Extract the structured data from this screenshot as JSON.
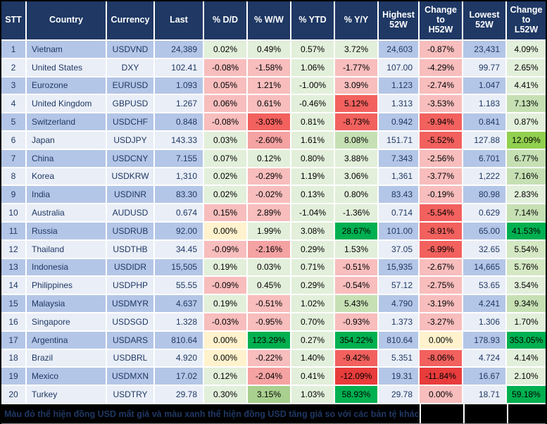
{
  "chart_data": {
    "type": "table",
    "columns": [
      {
        "key": "stt",
        "label": "STT"
      },
      {
        "key": "country",
        "label": "Country"
      },
      {
        "key": "currency",
        "label": "Currency"
      },
      {
        "key": "last",
        "label": "Last"
      },
      {
        "key": "dd",
        "label": "% D/D"
      },
      {
        "key": "ww",
        "label": "% W/W"
      },
      {
        "key": "ytd",
        "label": "% YTD"
      },
      {
        "key": "yy",
        "label": "% Y/Y"
      },
      {
        "key": "high",
        "label": "Highest\n52W"
      },
      {
        "key": "chg_h",
        "label": "Change\nto\nH52W"
      },
      {
        "key": "low",
        "label": "Lowest\n52W"
      },
      {
        "key": "chg_l",
        "label": "Change\nto\nL52W"
      }
    ],
    "rows": [
      {
        "stt": "1",
        "country": "Vietnam",
        "currency": "USDVND",
        "last": "24,389",
        "high": "24,603",
        "low": "23,431",
        "dd": {
          "v": "0.02%",
          "bg": "#E2EFDA"
        },
        "ww": {
          "v": "0.49%",
          "bg": "#E2EFDA"
        },
        "ytd": {
          "v": "0.57%",
          "bg": "#E2EFDA"
        },
        "yy": {
          "v": "3.72%",
          "bg": "#E2EFDA"
        },
        "chg_h": {
          "v": "-0.87%",
          "bg": "#F8BDBD"
        },
        "chg_l": {
          "v": "4.09%",
          "bg": "#E2EFDA"
        }
      },
      {
        "stt": "2",
        "country": "United States",
        "currency": "DXY",
        "last": "102.41",
        "high": "107.00",
        "low": "99.77",
        "dd": {
          "v": "-0.08%",
          "bg": "#F8BDBD"
        },
        "ww": {
          "v": "-1.58%",
          "bg": "#F8BDBD"
        },
        "ytd": {
          "v": "1.06%",
          "bg": "#E2EFDA"
        },
        "yy": {
          "v": "-1.77%",
          "bg": "#F8BDBD"
        },
        "chg_h": {
          "v": "-4.29%",
          "bg": "#F8BDBD"
        },
        "chg_l": {
          "v": "2.65%",
          "bg": "#E2EFDA"
        }
      },
      {
        "stt": "3",
        "country": "Eurozone",
        "currency": "EURUSD",
        "last": "1.093",
        "high": "1.123",
        "low": "1.047",
        "dd": {
          "v": "0.05%",
          "bg": "#F8BDBD"
        },
        "ww": {
          "v": "1.21%",
          "bg": "#F8BDBD"
        },
        "ytd": {
          "v": "-1.00%",
          "bg": "#E2EFDA"
        },
        "yy": {
          "v": "3.09%",
          "bg": "#F8BDBD"
        },
        "chg_h": {
          "v": "-2.74%",
          "bg": "#F8BDBD"
        },
        "chg_l": {
          "v": "4.41%",
          "bg": "#E2EFDA"
        }
      },
      {
        "stt": "4",
        "country": "United Kingdom",
        "currency": "GBPUSD",
        "last": "1.267",
        "high": "1.313",
        "low": "1.183",
        "dd": {
          "v": "0.06%",
          "bg": "#F8BDBD"
        },
        "ww": {
          "v": "0.61%",
          "bg": "#F8BDBD"
        },
        "ytd": {
          "v": "-0.46%",
          "bg": "#E2EFDA"
        },
        "yy": {
          "v": "5.12%",
          "bg": "#F2615E"
        },
        "chg_h": {
          "v": "-3.53%",
          "bg": "#F8BDBD"
        },
        "chg_l": {
          "v": "7.13%",
          "bg": "#C6E0B4"
        }
      },
      {
        "stt": "5",
        "country": "Switzerland",
        "currency": "USDCHF",
        "last": "0.848",
        "high": "0.942",
        "low": "0.841",
        "dd": {
          "v": "-0.08%",
          "bg": "#F8BDBD"
        },
        "ww": {
          "v": "-3.03%",
          "bg": "#F2615E"
        },
        "ytd": {
          "v": "0.81%",
          "bg": "#E2EFDA"
        },
        "yy": {
          "v": "-8.73%",
          "bg": "#F2615E"
        },
        "chg_h": {
          "v": "-9.94%",
          "bg": "#F2615E"
        },
        "chg_l": {
          "v": "0.87%",
          "bg": "#E2EFDA"
        }
      },
      {
        "stt": "6",
        "country": "Japan",
        "currency": "USDJPY",
        "last": "143.33",
        "high": "151.71",
        "low": "127.88",
        "dd": {
          "v": "0.03%",
          "bg": "#E2EFDA"
        },
        "ww": {
          "v": "-2.60%",
          "bg": "#F5A2A2"
        },
        "ytd": {
          "v": "1.61%",
          "bg": "#E2EFDA"
        },
        "yy": {
          "v": "8.08%",
          "bg": "#C6E0B4"
        },
        "chg_h": {
          "v": "-5.52%",
          "bg": "#F2615E"
        },
        "chg_l": {
          "v": "12.09%",
          "bg": "#92D050"
        }
      },
      {
        "stt": "7",
        "country": "China",
        "currency": "USDCNY",
        "last": "7.155",
        "high": "7.343",
        "low": "6.701",
        "dd": {
          "v": "0.07%",
          "bg": "#E2EFDA"
        },
        "ww": {
          "v": "0.12%",
          "bg": "#E2EFDA"
        },
        "ytd": {
          "v": "0.80%",
          "bg": "#E2EFDA"
        },
        "yy": {
          "v": "3.88%",
          "bg": "#E2EFDA"
        },
        "chg_h": {
          "v": "-2.56%",
          "bg": "#F8BDBD"
        },
        "chg_l": {
          "v": "6.77%",
          "bg": "#C6E0B4"
        }
      },
      {
        "stt": "8",
        "country": "Korea",
        "currency": "USDKRW",
        "last": "1,310",
        "high": "1,361",
        "low": "1,222",
        "dd": {
          "v": "0.02%",
          "bg": "#E2EFDA"
        },
        "ww": {
          "v": "-0.29%",
          "bg": "#F8BDBD"
        },
        "ytd": {
          "v": "1.19%",
          "bg": "#E2EFDA"
        },
        "yy": {
          "v": "3.06%",
          "bg": "#E2EFDA"
        },
        "chg_h": {
          "v": "-3.77%",
          "bg": "#F8BDBD"
        },
        "chg_l": {
          "v": "7.16%",
          "bg": "#C6E0B4"
        }
      },
      {
        "stt": "9",
        "country": "India",
        "currency": "USDINR",
        "last": "83.30",
        "high": "83.43",
        "low": "80.98",
        "dd": {
          "v": "0.02%",
          "bg": "#E2EFDA"
        },
        "ww": {
          "v": "-0.02%",
          "bg": "#F8BDBD"
        },
        "ytd": {
          "v": "0.13%",
          "bg": "#E2EFDA"
        },
        "yy": {
          "v": "0.80%",
          "bg": "#E2EFDA"
        },
        "chg_h": {
          "v": "-0.19%",
          "bg": "#F8BDBD"
        },
        "chg_l": {
          "v": "2.83%",
          "bg": "#E2EFDA"
        }
      },
      {
        "stt": "10",
        "country": "Australia",
        "currency": "AUDUSD",
        "last": "0.674",
        "high": "0.714",
        "low": "0.629",
        "dd": {
          "v": "0.15%",
          "bg": "#F8BDBD"
        },
        "ww": {
          "v": "2.89%",
          "bg": "#F8BDBD"
        },
        "ytd": {
          "v": "-1.04%",
          "bg": "#E2EFDA"
        },
        "yy": {
          "v": "-1.36%",
          "bg": "#E2EFDA"
        },
        "chg_h": {
          "v": "-5.54%",
          "bg": "#F2615E"
        },
        "chg_l": {
          "v": "7.14%",
          "bg": "#C6E0B4"
        }
      },
      {
        "stt": "11",
        "country": "Russia",
        "currency": "USDRUB",
        "last": "92.00",
        "high": "101.00",
        "low": "65.00",
        "dd": {
          "v": "0.00%",
          "bg": "#FFF2CC"
        },
        "ww": {
          "v": "1.99%",
          "bg": "#E2EFDA"
        },
        "ytd": {
          "v": "3.08%",
          "bg": "#E2EFDA"
        },
        "yy": {
          "v": "28.67%",
          "bg": "#00B050"
        },
        "chg_h": {
          "v": "-8.91%",
          "bg": "#F2615E"
        },
        "chg_l": {
          "v": "41.53%",
          "bg": "#00B050"
        }
      },
      {
        "stt": "12",
        "country": "Thailand",
        "currency": "USDTHB",
        "last": "34.45",
        "high": "37.05",
        "low": "32.65",
        "dd": {
          "v": "-0.09%",
          "bg": "#F8BDBD"
        },
        "ww": {
          "v": "-2.16%",
          "bg": "#F5A2A2"
        },
        "ytd": {
          "v": "0.29%",
          "bg": "#E2EFDA"
        },
        "yy": {
          "v": "1.53%",
          "bg": "#E2EFDA"
        },
        "chg_h": {
          "v": "-6.99%",
          "bg": "#F2615E"
        },
        "chg_l": {
          "v": "5.54%",
          "bg": "#D5E8C4"
        }
      },
      {
        "stt": "13",
        "country": "Indonesia",
        "currency": "USDIDR",
        "last": "15,505",
        "high": "15,935",
        "low": "14,665",
        "dd": {
          "v": "0.19%",
          "bg": "#E2EFDA"
        },
        "ww": {
          "v": "0.03%",
          "bg": "#E2EFDA"
        },
        "ytd": {
          "v": "0.71%",
          "bg": "#E2EFDA"
        },
        "yy": {
          "v": "-0.51%",
          "bg": "#F8BDBD"
        },
        "chg_h": {
          "v": "-2.67%",
          "bg": "#F8BDBD"
        },
        "chg_l": {
          "v": "5.76%",
          "bg": "#D5E8C4"
        }
      },
      {
        "stt": "14",
        "country": "Philippines",
        "currency": "USDPHP",
        "last": "55.55",
        "high": "57.12",
        "low": "53.65",
        "dd": {
          "v": "-0.09%",
          "bg": "#F8BDBD"
        },
        "ww": {
          "v": "0.45%",
          "bg": "#E2EFDA"
        },
        "ytd": {
          "v": "0.29%",
          "bg": "#E2EFDA"
        },
        "yy": {
          "v": "-0.54%",
          "bg": "#F8BDBD"
        },
        "chg_h": {
          "v": "-2.75%",
          "bg": "#F8BDBD"
        },
        "chg_l": {
          "v": "3.54%",
          "bg": "#E2EFDA"
        }
      },
      {
        "stt": "15",
        "country": "Malaysia",
        "currency": "USDMYR",
        "last": "4.637",
        "high": "4.790",
        "low": "4.241",
        "dd": {
          "v": "0.19%",
          "bg": "#E2EFDA"
        },
        "ww": {
          "v": "-0.51%",
          "bg": "#F8BDBD"
        },
        "ytd": {
          "v": "1.02%",
          "bg": "#E2EFDA"
        },
        "yy": {
          "v": "5.43%",
          "bg": "#C6E0B4"
        },
        "chg_h": {
          "v": "-3.19%",
          "bg": "#F8BDBD"
        },
        "chg_l": {
          "v": "9.34%",
          "bg": "#C6E0B4"
        }
      },
      {
        "stt": "16",
        "country": "Singapore",
        "currency": "USDSGD",
        "last": "1.328",
        "high": "1.373",
        "low": "1.306",
        "dd": {
          "v": "-0.03%",
          "bg": "#F8BDBD"
        },
        "ww": {
          "v": "-0.95%",
          "bg": "#F8BDBD"
        },
        "ytd": {
          "v": "0.70%",
          "bg": "#E2EFDA"
        },
        "yy": {
          "v": "-0.93%",
          "bg": "#F8BDBD"
        },
        "chg_h": {
          "v": "-3.27%",
          "bg": "#F8BDBD"
        },
        "chg_l": {
          "v": "1.70%",
          "bg": "#E2EFDA"
        }
      },
      {
        "stt": "17",
        "country": "Argentina",
        "currency": "USDARS",
        "last": "810.64",
        "high": "810.64",
        "low": "178.93",
        "dd": {
          "v": "0.00%",
          "bg": "#FFF2CC"
        },
        "ww": {
          "v": "123.29%",
          "bg": "#00B050"
        },
        "ytd": {
          "v": "0.27%",
          "bg": "#E2EFDA"
        },
        "yy": {
          "v": "354.22%",
          "bg": "#00B050"
        },
        "chg_h": {
          "v": "0.00%",
          "bg": "#FFF2CC"
        },
        "chg_l": {
          "v": "353.05%",
          "bg": "#00B050"
        }
      },
      {
        "stt": "18",
        "country": "Brazil",
        "currency": "USDBRL",
        "last": "4.920",
        "high": "5.351",
        "low": "4.724",
        "dd": {
          "v": "0.00%",
          "bg": "#FFF2CC"
        },
        "ww": {
          "v": "-0.22%",
          "bg": "#F8BDBD"
        },
        "ytd": {
          "v": "1.40%",
          "bg": "#E2EFDA"
        },
        "yy": {
          "v": "-9.42%",
          "bg": "#F2615E"
        },
        "chg_h": {
          "v": "-8.06%",
          "bg": "#F2615E"
        },
        "chg_l": {
          "v": "4.14%",
          "bg": "#E2EFDA"
        }
      },
      {
        "stt": "19",
        "country": "Mexico",
        "currency": "USDMXN",
        "last": "17.02",
        "high": "19.31",
        "low": "16.67",
        "dd": {
          "v": "0.12%",
          "bg": "#E2EFDA"
        },
        "ww": {
          "v": "-2.04%",
          "bg": "#F5A2A2"
        },
        "ytd": {
          "v": "0.41%",
          "bg": "#E2EFDA"
        },
        "yy": {
          "v": "-12.09%",
          "bg": "#E83C3C"
        },
        "chg_h": {
          "v": "-11.84%",
          "bg": "#E83C3C"
        },
        "chg_l": {
          "v": "2.10%",
          "bg": "#E2EFDA"
        }
      },
      {
        "stt": "20",
        "country": "Turkey",
        "currency": "USDTRY",
        "last": "29.78",
        "high": "29.78",
        "low": "18.71",
        "dd": {
          "v": "0.30%",
          "bg": "#E2EFDA"
        },
        "ww": {
          "v": "3.15%",
          "bg": "#A9D08E"
        },
        "ytd": {
          "v": "1.03%",
          "bg": "#E2EFDA"
        },
        "yy": {
          "v": "58.93%",
          "bg": "#00B050"
        },
        "chg_h": {
          "v": "0.00%",
          "bg": "#F8BDBD"
        },
        "chg_l": {
          "v": "59.18%",
          "bg": "#00B050"
        }
      }
    ]
  },
  "colors": {
    "header_bg": "#1F3864",
    "header_text": "#FFFFFF",
    "row_odd": "#B4C6E7",
    "row_even": "#E9EEF7",
    "stripe_text": "#1F3864",
    "pct_text": "#000000",
    "positive_usd_strong": "#00B050",
    "negative_usd_weak": "#F2615E",
    "neutral_zero": "#FFF2CC",
    "footer_bg": "#000000",
    "footer_text": "#1F3864"
  },
  "footer": {
    "note": "Màu đỏ thể hiện đồng USD mất giá và màu xanh thể hiện đồng USD tăng giá so với các bản tệ khác."
  }
}
